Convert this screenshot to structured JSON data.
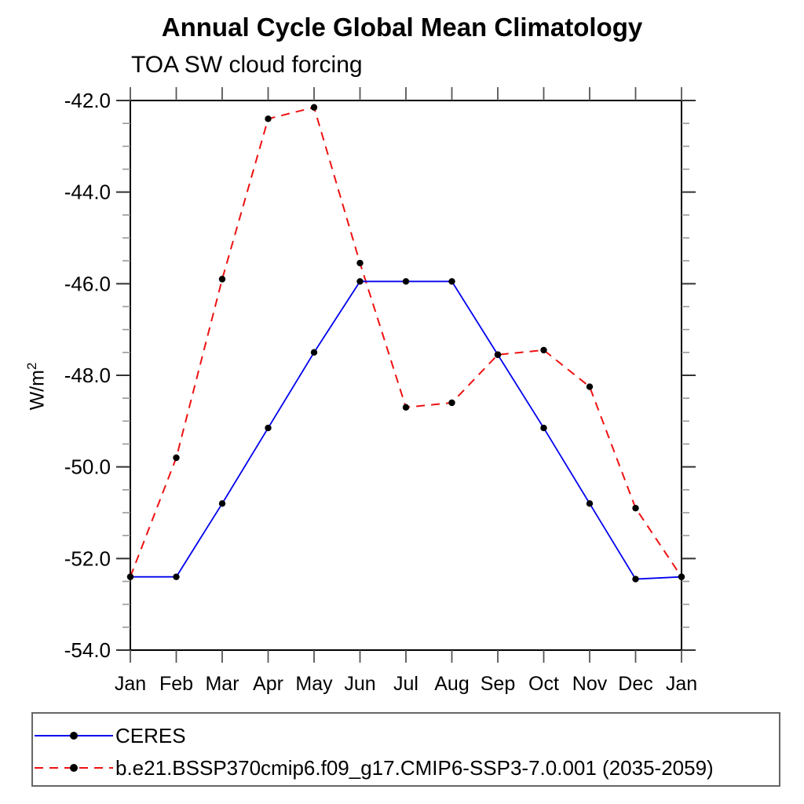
{
  "chart_data": {
    "type": "line",
    "title": "Annual Cycle Global Mean Climatology",
    "subtitle": "TOA SW cloud forcing",
    "ylabel_base": "W/m",
    "ylabel_sup": "2",
    "categories": [
      "Jan",
      "Feb",
      "Mar",
      "Apr",
      "May",
      "Jun",
      "Jul",
      "Aug",
      "Sep",
      "Oct",
      "Nov",
      "Dec",
      "Jan"
    ],
    "series": [
      {
        "name": "CERES",
        "color": "#0000ee",
        "line_style": "solid",
        "marker": "filled-circle",
        "marker_color": "#000000",
        "values": [
          -52.4,
          -52.4,
          -50.8,
          -49.15,
          -47.5,
          -45.95,
          -45.95,
          -45.95,
          -47.55,
          -49.15,
          -50.8,
          -52.45,
          -52.4
        ]
      },
      {
        "name": "b.e21.BSSP370cmip6.f09_g17.CMIP6-SSP3-7.0.001 (2035-2059)",
        "color": "#ee1111",
        "line_style": "dashed",
        "marker": "filled-circle",
        "marker_color": "#000000",
        "values": [
          -52.4,
          -49.8,
          -45.9,
          -42.4,
          -42.15,
          -45.55,
          -48.7,
          -48.6,
          -47.55,
          -47.45,
          -48.25,
          -50.9,
          -52.4
        ]
      }
    ],
    "ylim": [
      -54.0,
      -42.0
    ],
    "ytick_labels": [
      "-42.0",
      "-44.0",
      "-46.0",
      "-48.0",
      "-50.0",
      "-52.0",
      "-54.0"
    ],
    "ytick_major_step": 2.0,
    "ytick_minor_step": 0.5,
    "xlabel": "",
    "grid": false,
    "legend_position": "bottom"
  }
}
